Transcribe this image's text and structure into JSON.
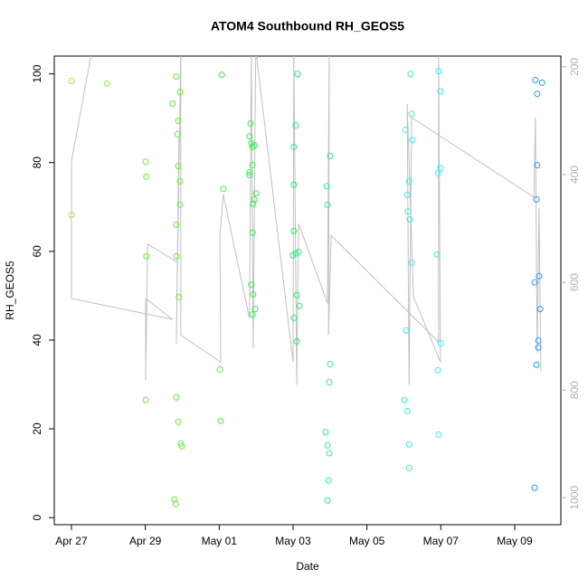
{
  "chart_data": {
    "type": "scatter",
    "title": "ATOM4 Southbound RH_GEOS5",
    "x_label": "Date",
    "y_label": "RH_GEOS5",
    "xlim": [
      -0.465,
      13.25
    ],
    "xticks": [
      {
        "value": 0,
        "label": "Apr 27"
      },
      {
        "value": 2,
        "label": "Apr 29"
      },
      {
        "value": 4,
        "label": "May 01"
      },
      {
        "value": 6,
        "label": "May 03"
      },
      {
        "value": 8,
        "label": "May 05"
      },
      {
        "value": 10,
        "label": "May 07"
      },
      {
        "value": 12,
        "label": "May 09"
      }
    ],
    "ylim": [
      -1.6,
      104
    ],
    "yticks": [
      0,
      20,
      40,
      60,
      80,
      100
    ],
    "y2lim": [
      1050,
      180
    ],
    "y2ticks": [
      200,
      400,
      600,
      800,
      1000
    ],
    "y2_color": "#b0b0b0",
    "series": [
      {
        "color": "#99ee33",
        "x": [
          0,
          0,
          0.96
        ],
        "values": [
          98.4,
          68.2,
          97.8
        ]
      },
      {
        "color": "#66ee33",
        "x": [
          2.01,
          2.03,
          2.03,
          2.01,
          2.74,
          2.84,
          2.94,
          2.87,
          2.89,
          2.89,
          2.94,
          2.94,
          2.84,
          2.84,
          2.91,
          2.84,
          2.89,
          2.96,
          2.99,
          2.79,
          2.82
        ],
        "values": [
          80.2,
          76.8,
          58.9,
          26.5,
          93.3,
          99.4,
          95.9,
          86.4,
          89.4,
          79.2,
          75.8,
          70.5,
          66.0,
          58.9,
          49.7,
          27.1,
          21.6,
          16.7,
          16.1,
          4.1,
          3.1
        ]
      },
      {
        "color": "#44ee44",
        "x": [
          4.07,
          4.11,
          4.02,
          4.04
        ],
        "values": [
          99.8,
          74.1,
          33.4,
          21.8
        ]
      },
      {
        "color": "#33ee55",
        "x": [
          4.82,
          4.85,
          4.87,
          4.9,
          4.82,
          4.82,
          4.9,
          4.95,
          5.0,
          4.95,
          4.92,
          4.9,
          4.87,
          4.92,
          4.97,
          4.9
        ],
        "values": [
          85.9,
          88.8,
          84.3,
          83.5,
          77.8,
          77.2,
          79.4,
          83.9,
          73.1,
          71.7,
          70.7,
          64.2,
          52.5,
          50.3,
          47.0,
          45.8
        ]
      },
      {
        "color": "#22ee77",
        "x": [
          6.12,
          6.07,
          6.02,
          6.02,
          6.02,
          5.99,
          6.07,
          6.15,
          6.1,
          6.17,
          6.02,
          6.1
        ],
        "values": [
          100.0,
          88.4,
          83.5,
          75.0,
          64.6,
          59.1,
          59.5,
          59.9,
          50.1,
          47.7,
          45.0,
          39.7
        ]
      },
      {
        "color": "#22eeaa",
        "x": [
          6.91,
          7.0,
          6.93,
          7.0,
          6.98,
          6.88,
          6.93,
          6.98,
          6.96,
          6.93
        ],
        "values": [
          74.7,
          81.5,
          70.5,
          34.6,
          30.5,
          19.3,
          16.3,
          14.5,
          8.4,
          3.9
        ]
      },
      {
        "color": "#33eedd",
        "x": [
          9.04,
          9.18,
          9.21,
          9.23,
          9.14,
          9.09,
          9.11,
          9.16,
          9.21,
          9.06,
          9.01,
          9.09,
          9.14,
          9.14
        ],
        "values": [
          87.4,
          100.0,
          91.0,
          85.1,
          75.8,
          72.7,
          69.0,
          67.2,
          57.4,
          42.2,
          26.5,
          24.0,
          16.5,
          11.2
        ]
      },
      {
        "color": "#33eeee",
        "x": [
          9.94,
          9.99,
          9.99,
          9.92,
          9.89,
          9.99,
          9.92,
          9.94
        ],
        "values": [
          100.6,
          96.1,
          78.8,
          77.6,
          59.3,
          39.3,
          33.2,
          18.7
        ]
      },
      {
        "color": "#2299ee",
        "x": [
          12.56,
          12.61,
          12.74,
          12.61,
          12.59,
          12.54,
          12.66,
          12.69,
          12.64,
          12.64,
          12.59,
          12.54
        ],
        "values": [
          98.6,
          95.5,
          98.0,
          79.4,
          71.7,
          53.0,
          54.4,
          47.0,
          39.9,
          38.3,
          34.4,
          6.7
        ]
      },
      {
        "type": "line",
        "axis": "y2",
        "color": "#c0c0c0",
        "x": [
          0.56,
          0,
          0,
          2.74,
          2.01,
          2.01,
          2.06,
          2.87,
          2.91,
          2.84,
          2.96,
          2.96,
          4.04,
          4.02,
          4.11,
          4.82,
          4.87,
          4.92,
          4.99,
          6.0,
          6.02,
          6.1,
          6.15,
          6.93,
          6.98,
          6.96,
          7.03,
          9.94,
          9.94,
          9.99,
          9.26,
          9.09,
          9.14,
          9.21,
          12.52,
          12.56,
          12.61,
          12.66,
          12.71
        ],
        "values": [
          168,
          375,
          630,
          669,
          630,
          782,
          529,
          563,
          328,
          714,
          168,
          698,
          748,
          513,
          437,
          667,
          168,
          723,
          168,
          748,
          168,
          790,
          491,
          639,
          168,
          698,
          513,
          711,
          168,
          748,
          627,
          269,
          790,
          294,
          442,
          294,
          731,
          462,
          765
        ]
      }
    ]
  }
}
